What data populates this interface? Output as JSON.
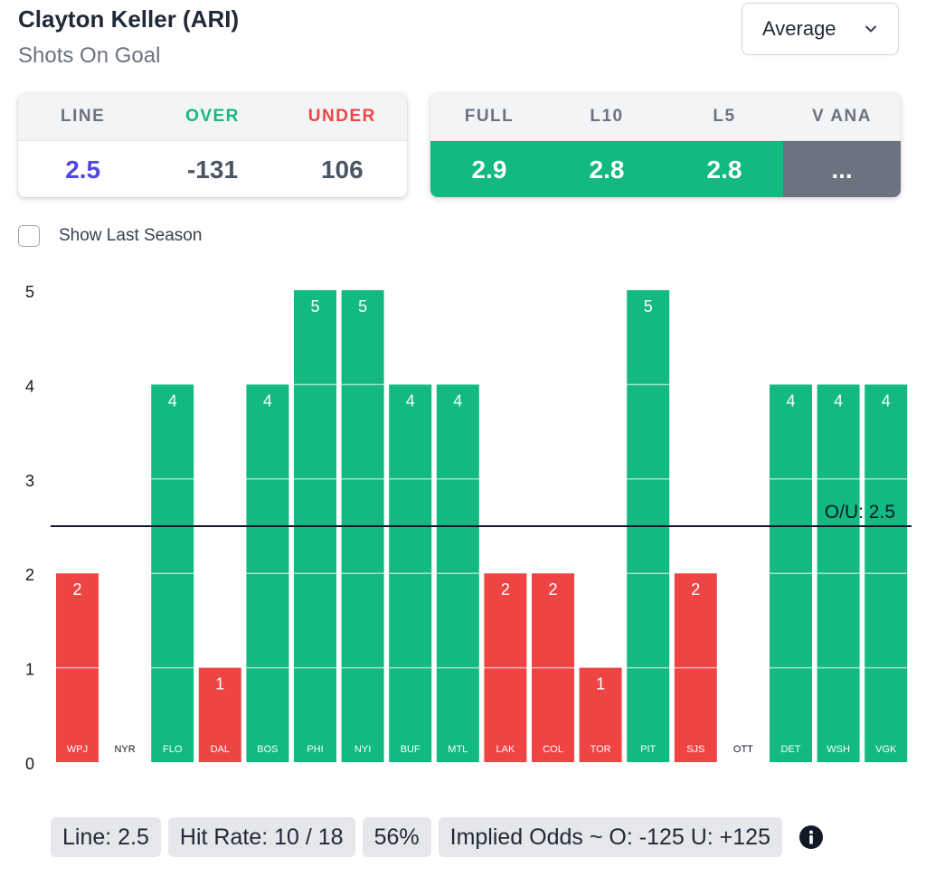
{
  "header": {
    "player": "Clayton Keller (ARI)",
    "stat": "Shots On Goal",
    "dropdown_value": "Average"
  },
  "line_card": {
    "headers": [
      "LINE",
      "OVER",
      "UNDER"
    ],
    "values": [
      "2.5",
      "-131",
      "106"
    ],
    "colors": {
      "line": "#4f46e5",
      "over": "#12b981",
      "under": "#ef4444"
    }
  },
  "avg_card": {
    "headers": [
      "FULL",
      "L10",
      "L5",
      "V ANA"
    ],
    "values": [
      "2.9",
      "2.8",
      "2.8",
      "..."
    ]
  },
  "toggle": {
    "label": "Show Last Season",
    "checked": false
  },
  "chart_data": {
    "type": "bar",
    "categories": [
      "WPJ",
      "NYR",
      "FLO",
      "DAL",
      "BOS",
      "PHI",
      "NYI",
      "BUF",
      "MTL",
      "LAK",
      "COL",
      "TOR",
      "PIT",
      "SJS",
      "OTT",
      "DET",
      "WSH",
      "VGK"
    ],
    "values": [
      2,
      0,
      4,
      1,
      4,
      5,
      5,
      4,
      4,
      2,
      2,
      1,
      5,
      2,
      0,
      4,
      4,
      4
    ],
    "ylim": [
      0,
      5
    ],
    "yticks": [
      0,
      1,
      2,
      3,
      4,
      5
    ],
    "line": {
      "value": 2.5,
      "label": "O/U: 2.5"
    },
    "colors": {
      "over": "#12b981",
      "under": "#ef4444"
    }
  },
  "footer": {
    "line": "Line: 2.5",
    "hit_rate": "Hit Rate: 10 / 18",
    "pct": "56%",
    "implied": "Implied Odds ~ O: -125 U: +125"
  }
}
